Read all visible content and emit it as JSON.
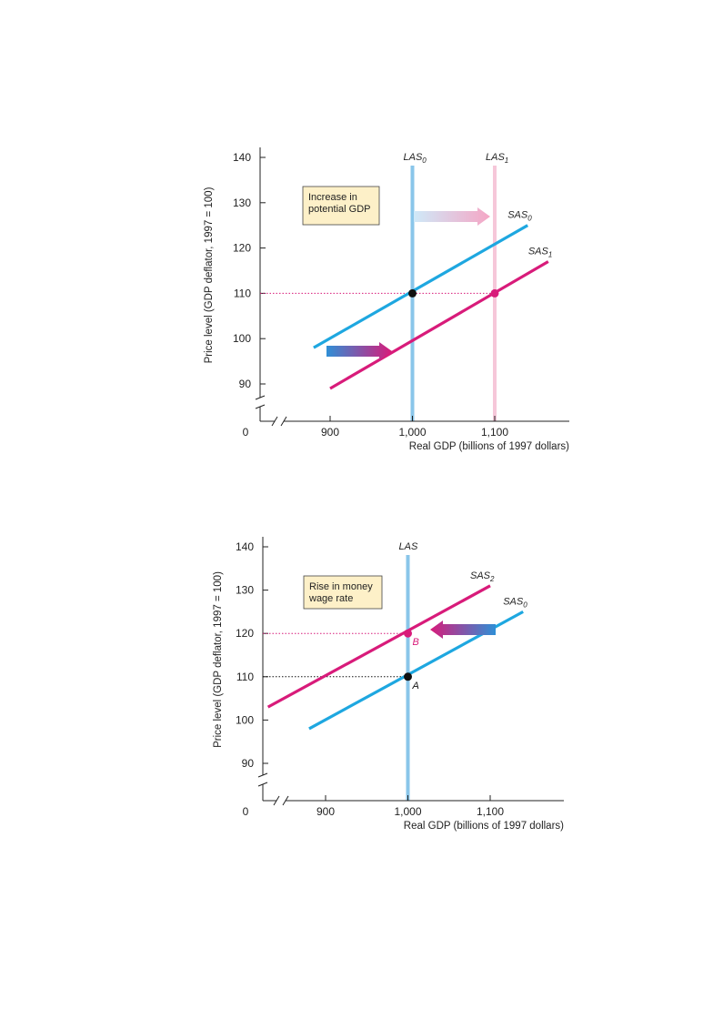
{
  "colors": {
    "cyan": "#1ea7e0",
    "magenta": "#d81b7a",
    "las_blue": "#8ac6ea",
    "las_pink": "#f6c7d9",
    "note_bg": "#fdf0c8",
    "point_black": "#111111",
    "axis": "#222222"
  },
  "chart_data": [
    {
      "type": "line",
      "xlabel": "Real GDP (billions of 1997 dollars)",
      "ylabel": "Price level (GDP deflator, 1997 = 100)",
      "origin_label": "0",
      "x_ticks": [
        900,
        1000,
        1100
      ],
      "x_tick_labels": [
        "900",
        "1,000",
        "1,100"
      ],
      "y_ticks": [
        90,
        100,
        110,
        120,
        130,
        140
      ],
      "y_tick_labels": [
        "90",
        "100",
        "110",
        "120",
        "130",
        "140"
      ],
      "xlim": [
        805,
        1170
      ],
      "ylim": [
        82,
        143
      ],
      "annotation": [
        "Increase in",
        "potential GDP"
      ],
      "series": [
        {
          "name": "LAS",
          "sub": "0",
          "kind": "vertical",
          "x": 1000,
          "color": "las_blue"
        },
        {
          "name": "LAS",
          "sub": "1",
          "kind": "vertical",
          "x": 1100,
          "color": "las_pink"
        },
        {
          "name": "SAS",
          "sub": "0",
          "kind": "line",
          "color": "cyan",
          "x": [
            880,
            1140
          ],
          "y": [
            98,
            125
          ]
        },
        {
          "name": "SAS",
          "sub": "1",
          "kind": "line",
          "color": "magenta",
          "x": [
            900,
            1165
          ],
          "y": [
            89,
            117
          ]
        }
      ],
      "points": [
        {
          "x": 1000,
          "y": 110,
          "color": "point_black",
          "label": ""
        },
        {
          "x": 1100,
          "y": 110,
          "color": "magenta",
          "label": ""
        }
      ],
      "guides": [
        {
          "y": 110,
          "x_end": 1100,
          "color": "magenta"
        }
      ],
      "highlighted_tick": {
        "x": "1,100",
        "y": "110"
      },
      "arrows": [
        {
          "direction": "right",
          "from": "las_blue",
          "to": "las_pink"
        },
        {
          "direction": "right",
          "from": "cyan",
          "to": "magenta"
        }
      ]
    },
    {
      "type": "line",
      "xlabel": "Real GDP (billions of 1997 dollars)",
      "ylabel": "Price level (GDP deflator, 1997 = 100)",
      "origin_label": "0",
      "x_ticks": [
        900,
        1000,
        1100
      ],
      "x_tick_labels": [
        "900",
        "1,000",
        "1,100"
      ],
      "y_ticks": [
        90,
        100,
        110,
        120,
        130,
        140
      ],
      "y_tick_labels": [
        "90",
        "100",
        "110",
        "120",
        "130",
        "140"
      ],
      "xlim": [
        805,
        1170
      ],
      "ylim": [
        82,
        143
      ],
      "annotation": [
        "Rise in money",
        "wage rate"
      ],
      "series": [
        {
          "name": "LAS",
          "sub": "",
          "kind": "vertical",
          "x": 1000,
          "color": "las_blue"
        },
        {
          "name": "SAS",
          "sub": "2",
          "kind": "line",
          "color": "magenta",
          "x": [
            830,
            1100
          ],
          "y": [
            103,
            131
          ]
        },
        {
          "name": "SAS",
          "sub": "0",
          "kind": "line",
          "color": "cyan",
          "x": [
            880,
            1140
          ],
          "y": [
            98,
            125
          ]
        }
      ],
      "points": [
        {
          "x": 1000,
          "y": 120,
          "color": "magenta",
          "label": "B"
        },
        {
          "x": 1000,
          "y": 110,
          "color": "point_black",
          "label": "A"
        }
      ],
      "guides": [
        {
          "y": 120,
          "x_end": 1000,
          "color": "magenta"
        },
        {
          "y": 110,
          "x_end": 1000,
          "color": "point_black"
        }
      ],
      "highlighted_tick": {
        "x": "1,000",
        "y": "120"
      },
      "arrows": [
        {
          "direction": "left",
          "from": "cyan",
          "to": "magenta"
        }
      ]
    }
  ]
}
